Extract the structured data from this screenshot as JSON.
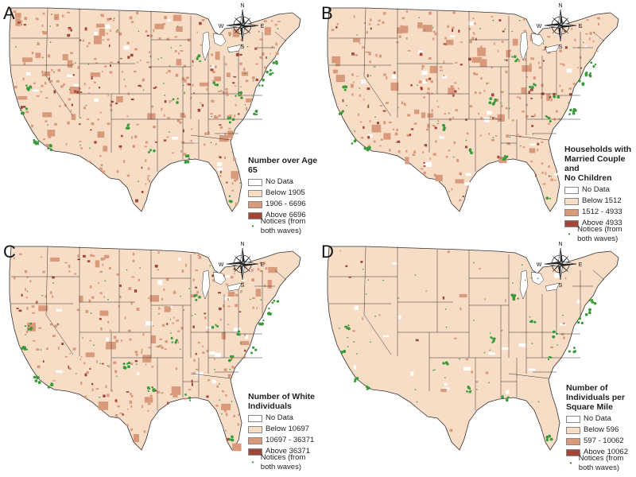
{
  "colors": {
    "no_data": "#ffffff",
    "below": "#f7dcc6",
    "mid": "#d99a7c",
    "above": "#a3463a",
    "notice": "#3a9a3a",
    "outline": "#333333"
  },
  "icons": {
    "compass": "compass-rose-icon"
  },
  "compass": {
    "n": "N",
    "s": "S",
    "e": "E",
    "w": "W"
  },
  "panels": [
    {
      "letter": "A",
      "legend": {
        "title_lines": [
          "Number over Age 65"
        ],
        "items": [
          "No Data",
          "Below 1905",
          "1906 - 6696",
          "Above 6696"
        ],
        "notice": "Notices (from both waves)"
      }
    },
    {
      "letter": "B",
      "legend": {
        "title_lines": [
          "Households with",
          "Married Couple and",
          "No Children"
        ],
        "items": [
          "No Data",
          "Below 1512",
          "1512 - 4933",
          "Above 4933"
        ],
        "notice": "Notices (from both waves)"
      }
    },
    {
      "letter": "C",
      "legend": {
        "title_lines": [
          "Number of White",
          "Individuals"
        ],
        "items": [
          "No Data",
          "Below 10697",
          "10697 - 36371",
          "Above 36371"
        ],
        "notice": "Notices (from both waves)"
      }
    },
    {
      "letter": "D",
      "legend": {
        "title_lines": [
          "Number of",
          "Individuals per",
          "Square Mile"
        ],
        "items": [
          "No Data",
          "Below 596",
          "597 - 10062",
          "Above 10062"
        ],
        "notice": "Notices (from both waves)"
      }
    }
  ]
}
